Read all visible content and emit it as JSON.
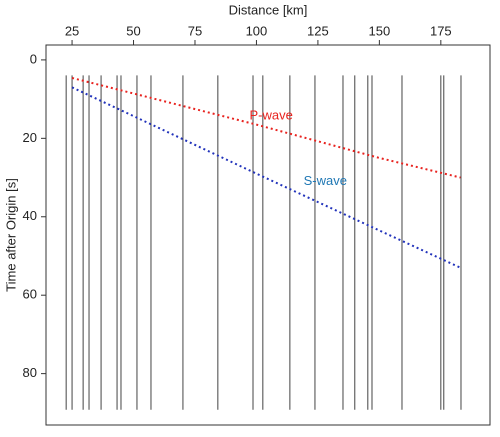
{
  "chart_data": {
    "type": "line",
    "x_label": "Distance [km]",
    "y_label": "Time after Origin [s]",
    "xlim": [
      14.4,
      195
    ],
    "xticks": [
      25,
      50,
      75,
      100,
      125,
      150,
      175
    ],
    "ylim": [
      -3.8,
      93.1
    ],
    "yticks": [
      0,
      20,
      40,
      60,
      80
    ],
    "y_inverted": true,
    "x_axis_position": "top",
    "traces": {
      "color": "#444444",
      "distances": [
        22.6,
        25,
        29.5,
        31.9,
        36.8,
        43.3,
        44.9,
        51.4,
        57.1,
        70.1,
        84.3,
        98.6,
        102.6,
        113.6,
        123.8,
        135.2,
        140,
        145.3,
        147,
        159.2,
        175,
        176.2,
        183.2
      ]
    },
    "series": [
      {
        "name": "P-wave",
        "color": "#e8231f",
        "x": [
          25,
          100,
          150,
          183
        ],
        "values": [
          4.6,
          16.5,
          25,
          30
        ],
        "label_at": [
          106,
          14.3
        ]
      },
      {
        "name": "S-wave",
        "color": "#2233bb",
        "label_color": "#1f77b4",
        "x": [
          25,
          100,
          150,
          183
        ],
        "values": [
          7,
          29,
          43.5,
          53
        ],
        "label_at": [
          128,
          31
        ]
      }
    ]
  }
}
